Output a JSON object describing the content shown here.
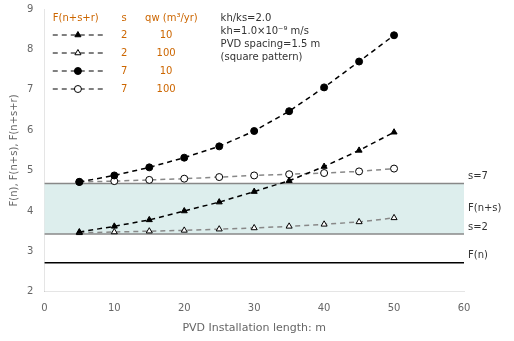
{
  "chart_data": {
    "type": "line",
    "xlabel": "PVD Installation length: m",
    "ylabel": "F(n), F(n+s), F(n+s+r)",
    "x": [
      5,
      10,
      15,
      20,
      25,
      30,
      35,
      40,
      45,
      50
    ],
    "series": [
      {
        "color": "#000000",
        "marker": "filled circle",
        "line_style": "dashed",
        "values": [
          4.72,
          4.88,
          5.08,
          5.32,
          5.6,
          5.98,
          6.47,
          7.06,
          7.7,
          8.35
        ]
      },
      {
        "color": "#000000",
        "marker": "filled triangle",
        "line_style": "dashed",
        "values": [
          3.48,
          3.62,
          3.78,
          4.0,
          4.22,
          4.48,
          4.75,
          5.1,
          5.5,
          5.95
        ]
      },
      {
        "color": "#888888",
        "marker": "open circle",
        "line_style": "dashed",
        "values": [
          4.72,
          4.74,
          4.77,
          4.8,
          4.84,
          4.88,
          4.91,
          4.94,
          4.98,
          5.05
        ]
      },
      {
        "color": "#888888",
        "marker": "open triangle",
        "line_style": "dashed",
        "values": [
          3.46,
          3.48,
          3.5,
          3.52,
          3.55,
          3.58,
          3.62,
          3.67,
          3.73,
          3.83
        ]
      }
    ],
    "xlim": [
      0,
      60
    ],
    "xticks": [
      0,
      10,
      20,
      30,
      40,
      50,
      60
    ],
    "ylim": [
      2,
      9
    ],
    "yticks": [
      2,
      3,
      4,
      5,
      6,
      7,
      8,
      9
    ],
    "grid": false,
    "legend": "upper left",
    "legend_table": {
      "color": "#cc6600",
      "header": [
        "F(n+s+r)",
        "s",
        "qw (m³/yr)"
      ],
      "rows": [
        {
          "marker": "filled triangle",
          "line_style": "dashed",
          "s": "2",
          "q": "10"
        },
        {
          "marker": "open triangle",
          "line_style": "dashed",
          "s": "2",
          "q": "100"
        },
        {
          "marker": "filled circle",
          "line_style": "dashed",
          "s": "7",
          "q": "10"
        },
        {
          "marker": "open circle",
          "line_style": "dashed",
          "s": "7",
          "q": "100"
        }
      ]
    },
    "hlines": [
      {
        "y": 2.72,
        "label": "F(n)",
        "color": "#000000"
      },
      {
        "y": 3.43,
        "label": "s=2",
        "color": "#888888"
      },
      {
        "y": 4.68,
        "label": "s=7",
        "color": "#888888"
      }
    ],
    "band": {
      "from": 3.43,
      "to": 4.68,
      "label": "F(n+s)",
      "color": "#ddeeed"
    },
    "annotations": [
      "kh/ks=2.0",
      "kh=1.0×10⁻⁹ m/s",
      "PVD spacing=1.5 m",
      "(square pattern)"
    ]
  }
}
